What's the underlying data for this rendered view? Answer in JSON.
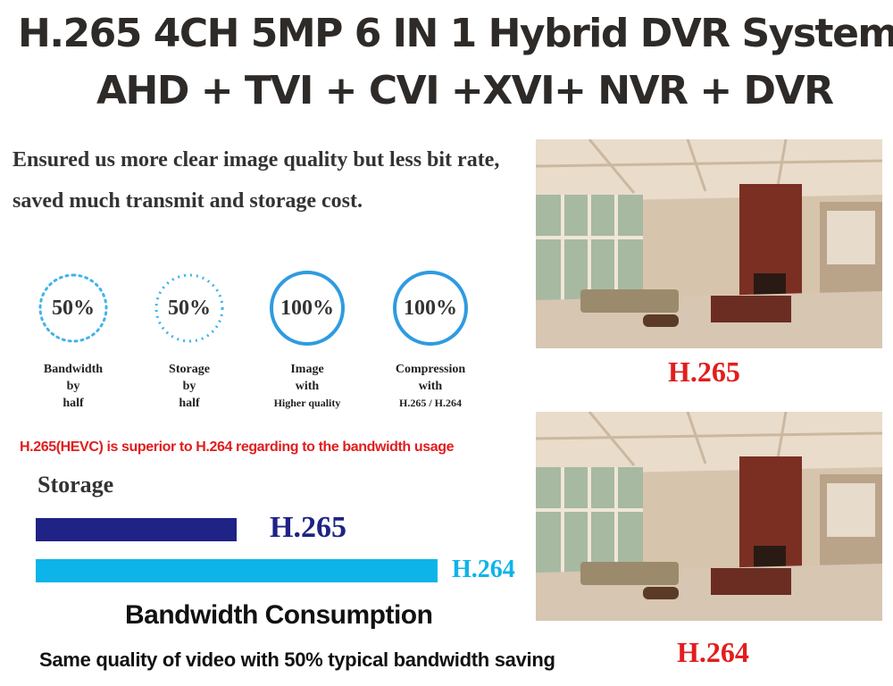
{
  "header": {
    "title_line1": "H.265 4CH 5MP 6 IN 1 Hybrid DVR System",
    "title_line2": "AHD + TVI + CVI +XVI+ NVR + DVR"
  },
  "intro": {
    "line1": "Ensured us more clear image quality but less bit rate,",
    "line2": "saved much transmit and storage cost."
  },
  "metrics": [
    {
      "value": "50%",
      "caption": [
        "Bandwidth",
        "by",
        "half"
      ],
      "style": "dashed"
    },
    {
      "value": "50%",
      "caption": [
        "Storage",
        "by",
        "half"
      ],
      "style": "dashed"
    },
    {
      "value": "100%",
      "caption": [
        "Image",
        "with",
        "Higher quality"
      ],
      "style": "solid"
    },
    {
      "value": "100%",
      "caption": [
        "Compression",
        "with",
        "H.265 / H.264"
      ],
      "style": "solid"
    }
  ],
  "notice": "H.265(HEVC) is superior to H.264 regarding to the bandwidth usage",
  "storage": {
    "label": "Storage",
    "bars": [
      {
        "name": "H.265",
        "relative_size": 0.5,
        "color": "#1e2385"
      },
      {
        "name": "H.264",
        "relative_size": 1.0,
        "color": "#0db4e9"
      }
    ]
  },
  "bandwidth": {
    "title": "Bandwidth Consumption",
    "subtitle": "Same quality of video with 50% typical bandwidth saving"
  },
  "photos": [
    {
      "label": "H.265",
      "image": "living-room-photo"
    },
    {
      "label": "H.264",
      "image": "living-room-photo"
    }
  ],
  "colors": {
    "accent_blue": "#2f9be0",
    "dark_navy": "#1e2385",
    "light_blue": "#0db4e9",
    "red": "#e21d1d"
  }
}
